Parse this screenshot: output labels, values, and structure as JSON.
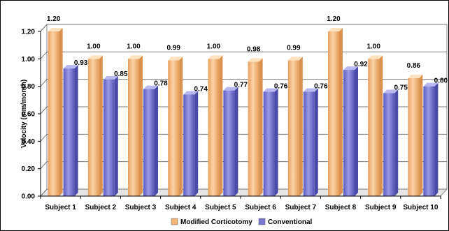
{
  "chart_data": {
    "type": "bar",
    "ylabel": "Velocity (mm/month)",
    "xlabel": "",
    "ylim": [
      0,
      1.2
    ],
    "yticks": [
      "0.00",
      "0.20",
      "0.40",
      "0.60",
      "0.80",
      "1.00",
      "1.20"
    ],
    "grid": true,
    "legend_position": "bottom",
    "categories": [
      "Subject 1",
      "Subject 2",
      "Subject 3",
      "Subject 4",
      "Subject 5",
      "Subject 6",
      "Subject 7",
      "Subject 8",
      "Subject 9",
      "Subject 10"
    ],
    "series": [
      {
        "name": "Modified  Corticotomy",
        "color": "#F5B678",
        "values": [
          1.2,
          1.0,
          1.0,
          0.99,
          1.0,
          0.98,
          0.99,
          1.2,
          1.0,
          0.86
        ],
        "labels": [
          "1.20",
          "1.00",
          "1.00",
          "0.99",
          "1.00",
          "0.98",
          "0.99",
          "1.20",
          "1.00",
          "0.86"
        ]
      },
      {
        "name": "Conventional",
        "color": "#7878D2",
        "values": [
          0.93,
          0.85,
          0.78,
          0.74,
          0.77,
          0.76,
          0.76,
          0.92,
          0.75,
          0.8
        ],
        "labels": [
          "0.93",
          "0.85",
          "0.78",
          "0.74",
          "0.77",
          "0.76",
          "0.76",
          "0.92",
          "0.75",
          "0.80"
        ]
      }
    ]
  }
}
